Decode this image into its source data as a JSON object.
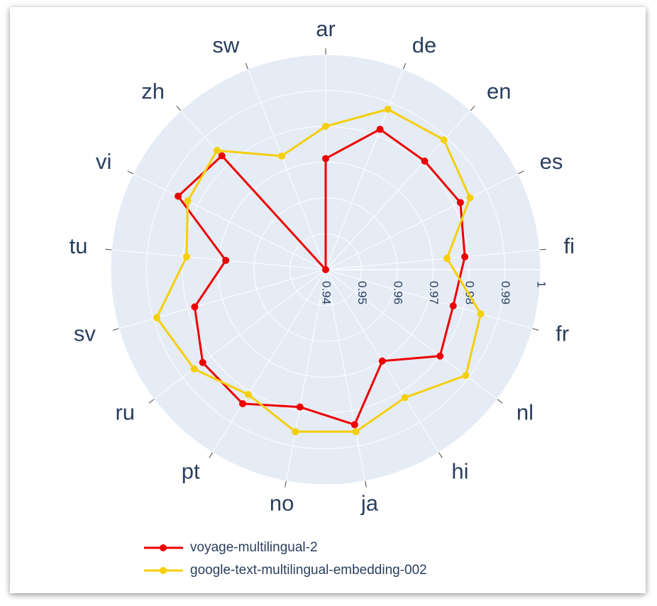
{
  "chart_data": {
    "type": "radar",
    "categories": [
      "ar",
      "de",
      "en",
      "es",
      "fi",
      "fr",
      "nl",
      "hi",
      "ja",
      "no",
      "pt",
      "ru",
      "sv",
      "tu",
      "vi",
      "zh",
      "sw"
    ],
    "series": [
      {
        "name": "voyage-multilingual-2",
        "color": "#ee0000",
        "values": [
          0.971,
          0.982,
          0.981,
          0.982,
          0.979,
          0.977,
          0.98,
          0.97,
          0.984,
          0.979,
          0.984,
          0.983,
          0.978,
          0.968,
          0.986,
          0.983,
          0.94
        ]
      },
      {
        "name": "google-text-multilingual-embedding-002",
        "color": "#f5cf0a",
        "values": [
          0.98,
          0.988,
          0.989,
          0.985,
          0.974,
          0.985,
          0.989,
          0.982,
          0.986,
          0.986,
          0.981,
          0.986,
          0.989,
          0.979,
          0.983,
          0.985,
          0.974
        ]
      }
    ],
    "rlim": [
      0.94,
      1
    ],
    "rticks": [
      0.94,
      0.95,
      0.96,
      0.97,
      0.98,
      0.99,
      1
    ],
    "grid": true
  }
}
